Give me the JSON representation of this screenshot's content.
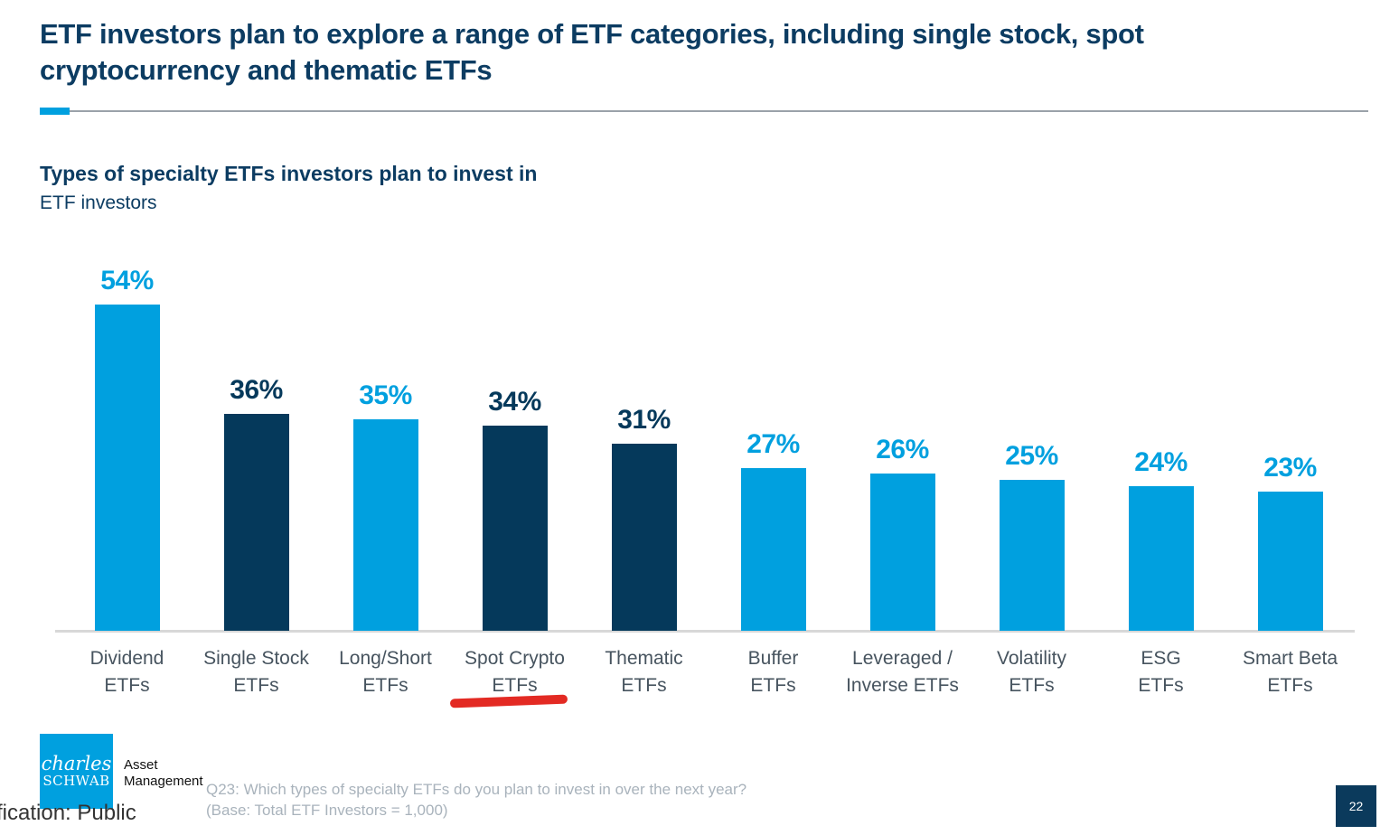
{
  "slide": {
    "title_line1": "ETF investors plan to explore a range of ETF categories, including single stock, spot",
    "title_line2": "cryptocurrency and thematic ETFs",
    "subtitle_bold": "Types of specialty ETFs investors plan to invest in",
    "subtitle_regular": "ETF investors",
    "classification_text": "fication: Public",
    "footnote_line1": "Q23: Which types of specialty ETFs do you plan to invest in over the next year?",
    "footnote_line2": "(Base: Total ETF Investors = 1,000)",
    "page_number": "22",
    "logo": {
      "brand_line1": "charles",
      "brand_line2": "SCHWAB",
      "unit_line1": "Asset",
      "unit_line2": "Management"
    }
  },
  "colors": {
    "light_blue": "#00A0DF",
    "dark_navy": "#05395B",
    "title_navy": "#0C3C62",
    "category_label_gray": "#47545F",
    "footnote_gray": "#A9B3BC",
    "axis_gray": "#D8D8D8",
    "red_marker": "#E32A23"
  },
  "chart_data": {
    "type": "bar",
    "title": "Types of specialty ETFs investors plan to invest in",
    "subtitle": "ETF investors",
    "unit": "%",
    "categories": [
      "Dividend ETFs",
      "Single Stock ETFs",
      "Long/Short ETFs",
      "Spot Crypto ETFs",
      "Thematic ETFs",
      "Buffer ETFs",
      "Leveraged / Inverse ETFs",
      "Volatility ETFs",
      "ESG ETFs",
      "Smart Beta ETFs"
    ],
    "category_lines": [
      [
        "Dividend",
        "ETFs"
      ],
      [
        "Single Stock",
        "ETFs"
      ],
      [
        "Long/Short",
        "ETFs"
      ],
      [
        "Spot Crypto",
        "ETFs"
      ],
      [
        "Thematic",
        "ETFs"
      ],
      [
        "Buffer",
        "ETFs"
      ],
      [
        "Leveraged /",
        "Inverse ETFs"
      ],
      [
        "Volatility",
        "ETFs"
      ],
      [
        "ESG",
        "ETFs"
      ],
      [
        "Smart Beta",
        "ETFs"
      ]
    ],
    "values": [
      54,
      36,
      35,
      34,
      31,
      27,
      26,
      25,
      24,
      23
    ],
    "bar_colors": [
      "light",
      "dark",
      "light",
      "dark",
      "dark",
      "light",
      "light",
      "light",
      "light",
      "light"
    ],
    "data_labels": [
      "54%",
      "36%",
      "35%",
      "34%",
      "31%",
      "27%",
      "26%",
      "25%",
      "24%",
      "23%"
    ],
    "highlighted_category": "Spot Crypto ETFs",
    "ylim": [
      0,
      60
    ],
    "grid": false,
    "legend": false
  }
}
